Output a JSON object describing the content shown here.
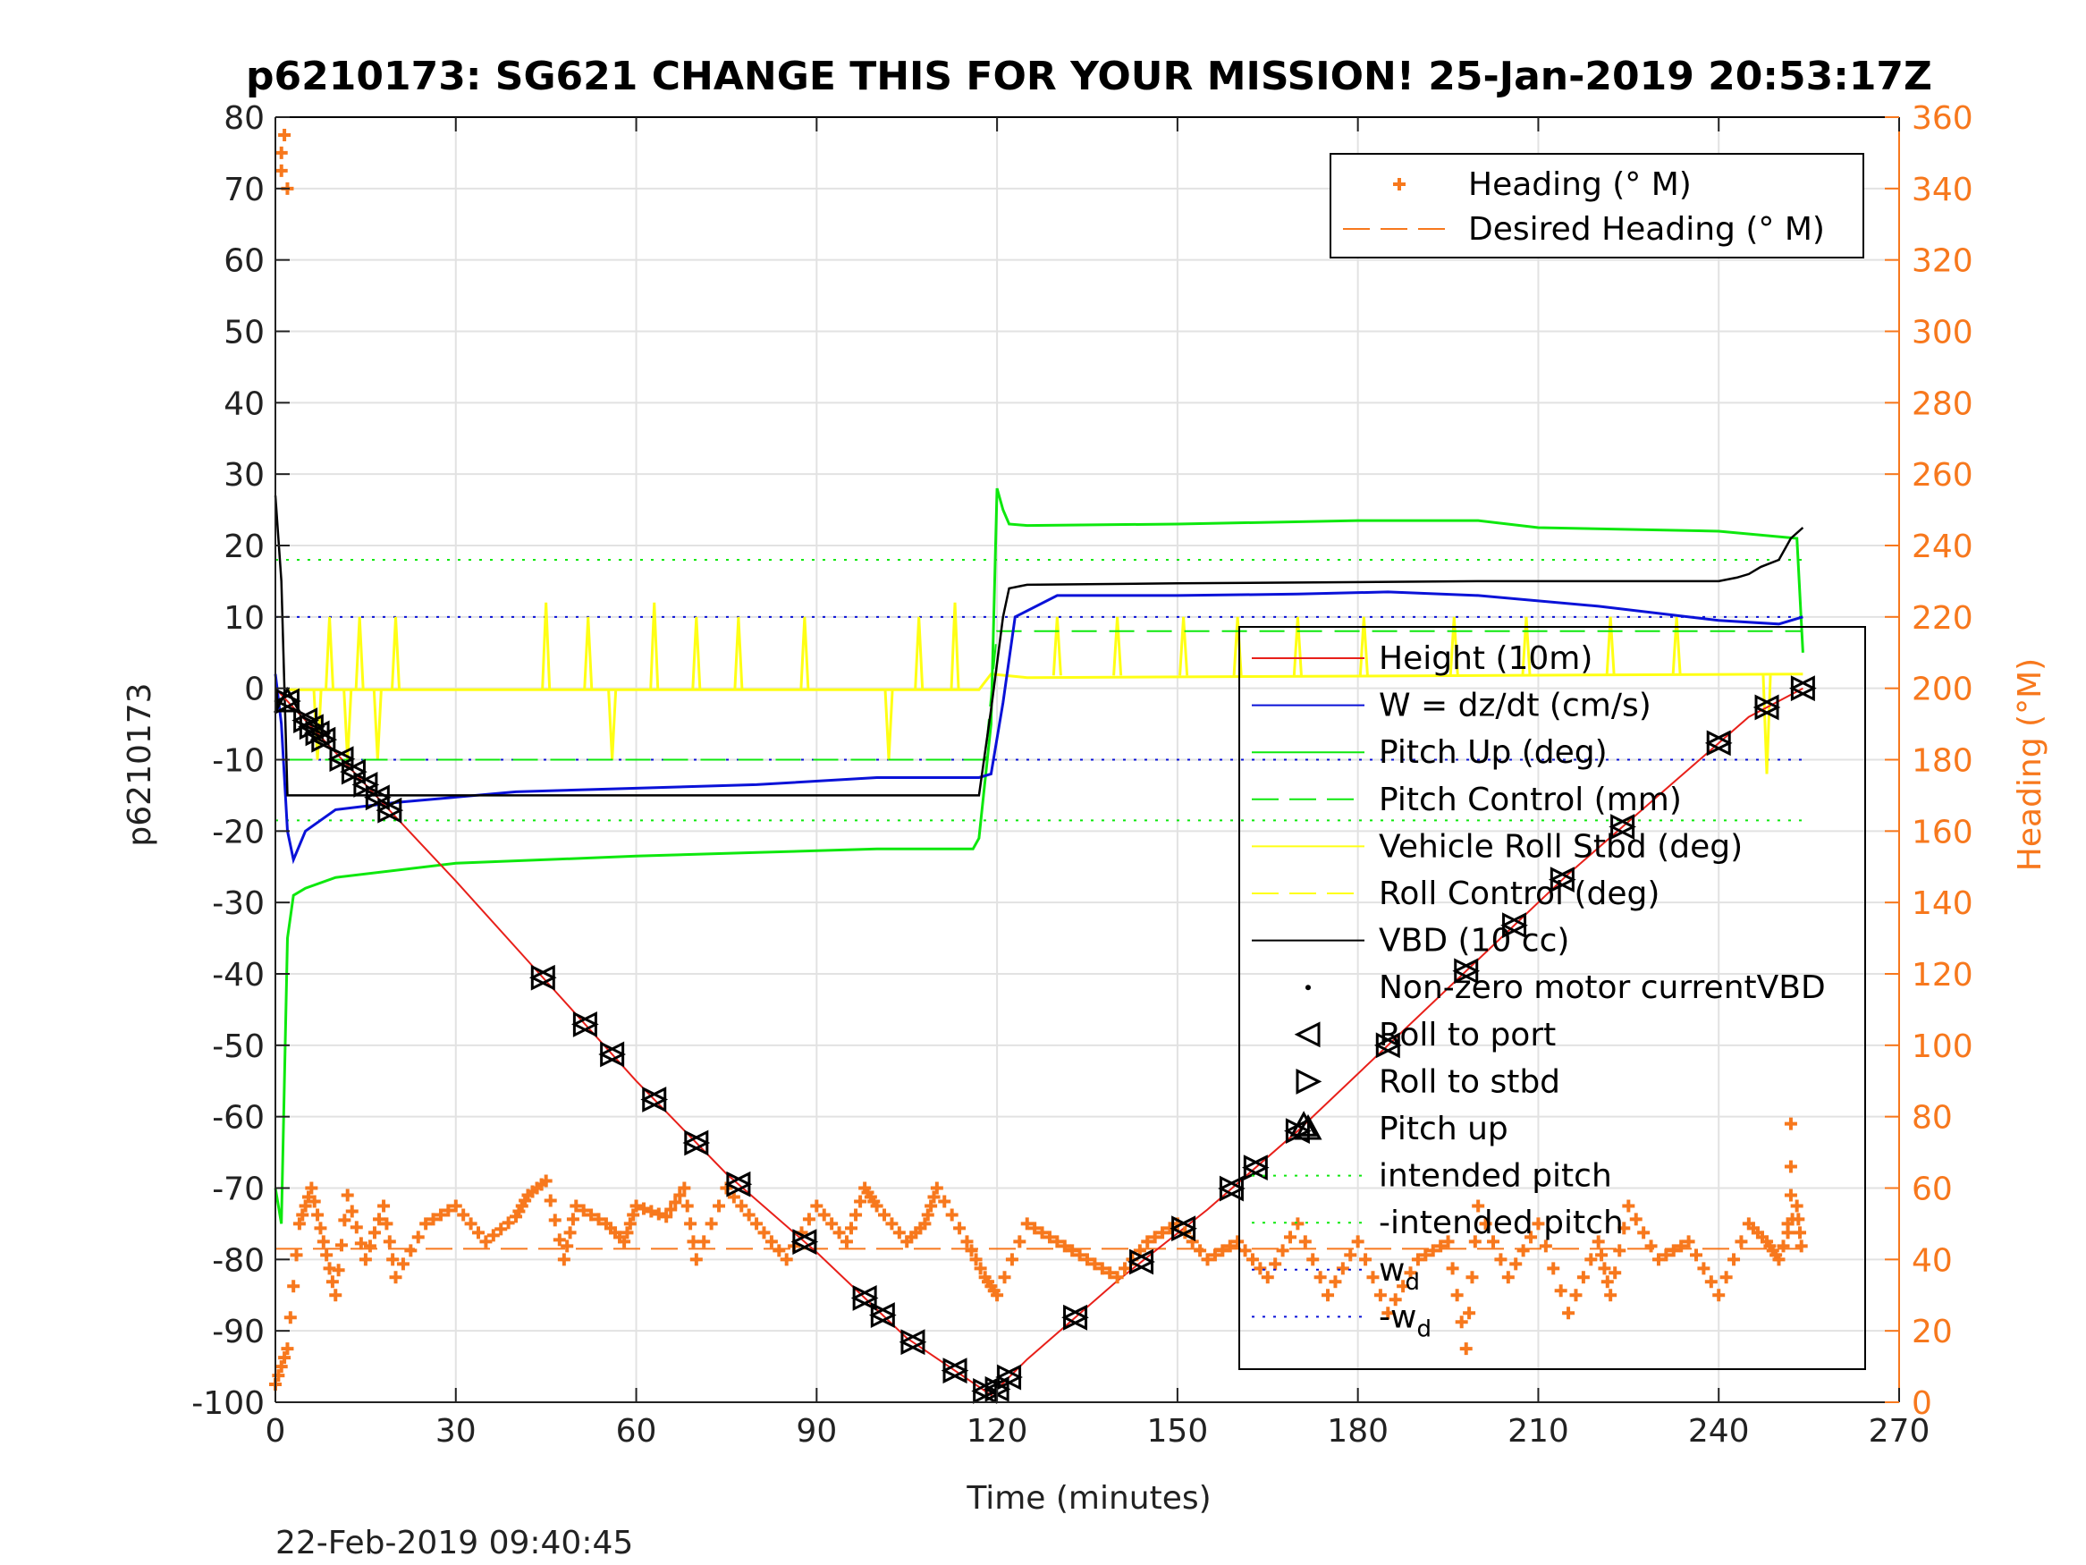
{
  "chart_data": {
    "type": "line",
    "title": "p6210173: SG621 CHANGE THIS FOR YOUR MISSION! 25-Jan-2019 20:53:17Z",
    "xlabel": "Time (minutes)",
    "ylabel": "p6210173",
    "y2label": "Heading (°M)",
    "timestamp": "22-Feb-2019 09:40:45",
    "xlim": [
      0,
      270
    ],
    "ylim": [
      -100,
      80
    ],
    "y2lim": [
      0,
      360
    ],
    "xticks": [
      "0",
      "30",
      "60",
      "90",
      "120",
      "150",
      "180",
      "210",
      "240",
      "270"
    ],
    "yticks": [
      "80",
      "70",
      "60",
      "50",
      "40",
      "30",
      "20",
      "10",
      "0",
      "-10",
      "-20",
      "-30",
      "-40",
      "-50",
      "-60",
      "-70",
      "-80",
      "-90",
      "-100"
    ],
    "y2ticks": [
      "360",
      "340",
      "320",
      "300",
      "280",
      "260",
      "240",
      "220",
      "200",
      "180",
      "160",
      "140",
      "120",
      "100",
      "80",
      "60",
      "40",
      "20",
      "0"
    ],
    "grid": true,
    "colors": {
      "height": "#e8201a",
      "w": "#0a12d8",
      "pitch": "#0ee80e",
      "roll": "#ffff14",
      "vbd": "#000000",
      "heading": "#f7781d",
      "axis2": "#f7781d"
    },
    "legend_heading": {
      "location": "top-right",
      "entries": [
        "Heading (° M)",
        "Desired Heading (° M)"
      ]
    },
    "legend_main": {
      "location": "lower-right",
      "entries": [
        "Height (10m)",
        "W = dz/dt (cm/s)",
        "Pitch Up (deg)",
        "Pitch Control (mm)",
        "Vehicle Roll Stbd (deg)",
        "Roll Control (deg)",
        "VBD (10 cc)",
        "Non-zero motor currentVBD",
        "Roll to port",
        "Roll to stbd",
        "Pitch up",
        "intended pitch",
        "-intended pitch",
        "w",
        "-w"
      ],
      "w_subscript": "d"
    },
    "series": [
      {
        "name": "Height (10m)",
        "x": [
          0,
          10,
          20,
          30,
          45,
          60,
          75,
          90,
          105,
          119,
          125,
          140,
          155,
          170,
          185,
          200,
          215,
          230,
          245,
          254
        ],
        "y": [
          0,
          -9,
          -18,
          -27,
          -41,
          -55,
          -68,
          -79,
          -91,
          -99,
          -94,
          -83,
          -73,
          -62,
          -50,
          -38,
          -26,
          -15,
          -4,
          0
        ]
      },
      {
        "name": "W = dz/dt (cm/s)",
        "x": [
          0,
          1,
          2,
          3,
          5,
          10,
          20,
          40,
          60,
          80,
          100,
          117,
          119,
          121,
          123,
          130,
          150,
          170,
          185,
          200,
          220,
          240,
          250,
          254
        ],
        "y": [
          2,
          -5,
          -20,
          -24,
          -20,
          -17,
          -16,
          -14.5,
          -14,
          -13.5,
          -12.5,
          -12.5,
          -12,
          -2,
          10,
          13,
          13,
          13.2,
          13.5,
          13,
          11.5,
          9.5,
          9,
          10
        ]
      },
      {
        "name": "Pitch Up (deg)",
        "x": [
          0,
          1,
          2,
          3,
          5,
          10,
          30,
          60,
          80,
          100,
          116,
          117,
          119,
          120,
          121,
          122,
          125,
          150,
          180,
          200,
          210,
          240,
          253,
          254
        ],
        "y": [
          -70,
          -75,
          -35,
          -29,
          -28,
          -26.5,
          -24.5,
          -23.5,
          -23,
          -22.5,
          -22.5,
          -21,
          -5,
          28,
          25,
          23,
          22.8,
          23,
          23.5,
          23.5,
          22.5,
          22,
          21,
          5
        ]
      },
      {
        "name": "Pitch Control (mm)",
        "x": [
          2,
          118,
          120,
          254
        ],
        "y": [
          -10,
          -10,
          8,
          8
        ]
      },
      {
        "name": "Vehicle Roll Stbd (deg)",
        "x": [
          2,
          117,
          119,
          125,
          254
        ],
        "y": [
          -0.2,
          -0.2,
          2,
          1.5,
          2
        ]
      },
      {
        "name": "VBD (10 cc)",
        "x": [
          0,
          1,
          2,
          117,
          119,
          121,
          122,
          125,
          150,
          200,
          240,
          243,
          245,
          247,
          250,
          252,
          254
        ],
        "y": [
          27,
          15,
          -15,
          -15,
          -3,
          10,
          14,
          14.5,
          14.7,
          15,
          15,
          15.5,
          16,
          17,
          18,
          21,
          22.5
        ]
      },
      {
        "name": "Heading (° M)",
        "x": [
          0,
          2,
          4,
          6,
          8,
          10,
          12,
          15,
          18,
          20,
          25,
          30,
          35,
          40,
          42,
          45,
          48,
          50,
          55,
          58,
          60,
          65,
          68,
          70,
          75,
          80,
          85,
          90,
          95,
          98,
          100,
          105,
          108,
          110,
          115,
          118,
          120,
          125,
          130,
          135,
          140,
          145,
          150,
          155,
          160,
          165,
          170,
          175,
          180,
          185,
          190,
          195,
          198,
          200,
          205,
          210,
          215,
          220,
          222,
          225,
          230,
          235,
          240,
          245,
          248,
          250,
          253,
          254
        ],
        "y": [
          5,
          15,
          50,
          60,
          45,
          30,
          58,
          40,
          55,
          35,
          50,
          55,
          45,
          52,
          58,
          62,
          40,
          55,
          50,
          45,
          55,
          52,
          60,
          40,
          60,
          50,
          40,
          55,
          45,
          60,
          55,
          45,
          50,
          60,
          45,
          35,
          30,
          50,
          45,
          40,
          35,
          45,
          50,
          40,
          45,
          35,
          50,
          30,
          45,
          25,
          40,
          45,
          15,
          55,
          35,
          50,
          25,
          45,
          30,
          55,
          40,
          45,
          30,
          50,
          45,
          40,
          55,
          40
        ]
      }
    ],
    "reference_lines": [
      {
        "name": "intended pitch",
        "y": 18
      },
      {
        "name": "-intended pitch",
        "y": -18.5
      },
      {
        "name": "w",
        "y": 10
      },
      {
        "name": "-w",
        "y": -10
      },
      {
        "name": "Desired Heading (° M)",
        "y2": 43
      }
    ],
    "markers": {
      "roll_to_port_stbd": {
        "x": [
          2,
          5,
          6,
          7,
          8,
          11,
          13,
          15,
          17,
          19,
          44.5,
          51.5,
          56,
          63,
          70,
          77,
          88,
          98,
          101,
          106,
          113,
          118,
          120,
          122,
          133,
          144,
          151,
          159,
          163,
          170,
          185,
          198,
          206,
          214,
          224,
          240,
          248,
          254
        ]
      },
      "pitch_up": {
        "x": [
          2,
          171
        ]
      }
    }
  }
}
